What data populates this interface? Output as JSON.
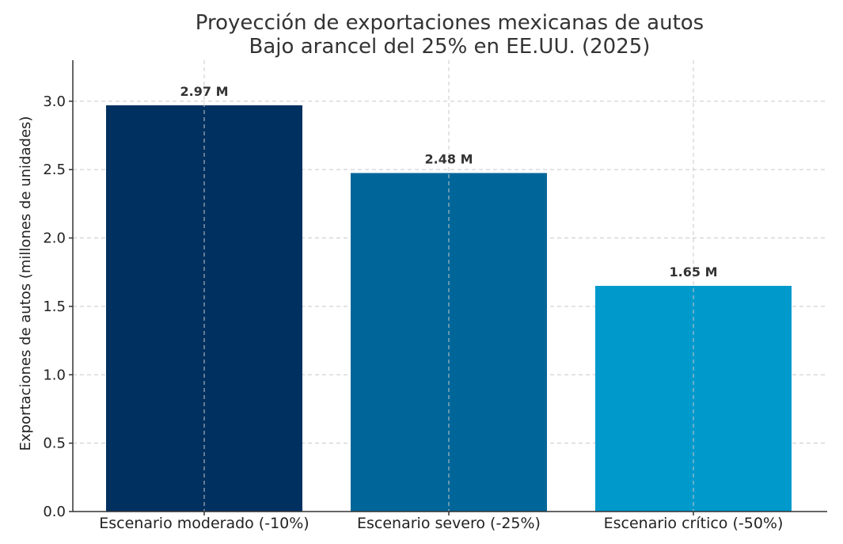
{
  "chart_data": {
    "type": "bar",
    "title_lines": [
      "Proyección de exportaciones mexicanas de autos",
      "Bajo arancel del 25% en EE.UU. (2025)"
    ],
    "ylabel": "Exportaciones de autos (millones de unidades)",
    "xlabel": "",
    "categories": [
      "Escenario moderado (-10%)",
      "Escenario severo (-25%)",
      "Escenario crítico (-50%)"
    ],
    "values": [
      2.97,
      2.475,
      1.65
    ],
    "data_labels": [
      "2.97 M",
      "2.48 M",
      "1.65 M"
    ],
    "bar_colors": [
      "#003060",
      "#006699",
      "#0099cc"
    ],
    "ylim": [
      0,
      3.3
    ],
    "y_ticks": [
      0.0,
      0.5,
      1.0,
      1.5,
      2.0,
      2.5,
      3.0
    ],
    "y_tick_labels": [
      "0.0",
      "0.5",
      "1.0",
      "1.5",
      "2.0",
      "2.5",
      "3.0"
    ],
    "grid": true
  }
}
